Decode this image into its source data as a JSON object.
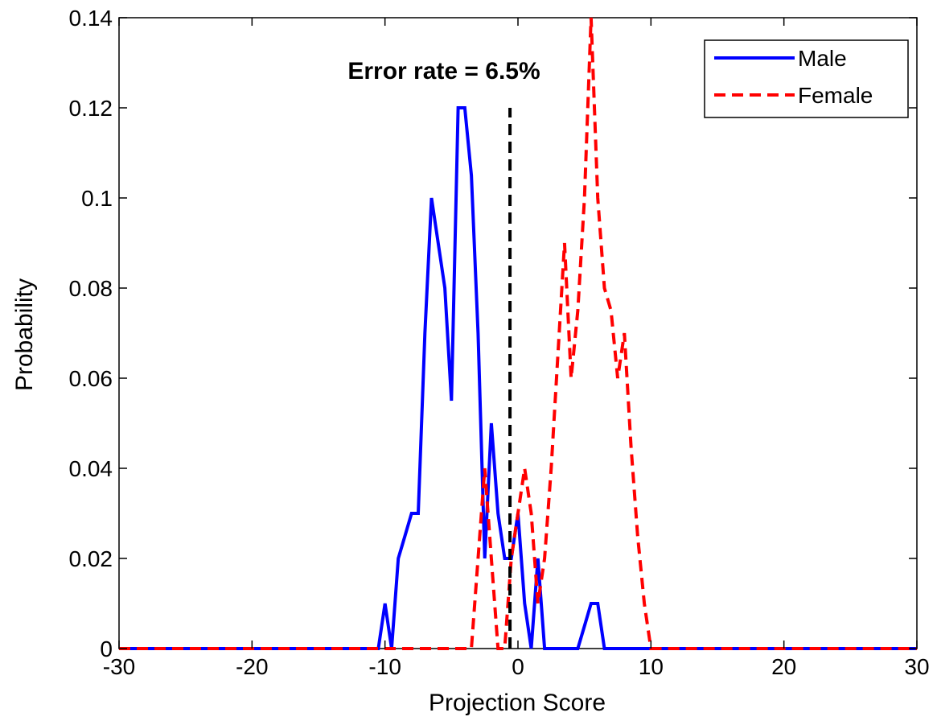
{
  "chart_data": {
    "type": "line",
    "title": "",
    "xlabel": "Projection Score",
    "ylabel": "Probability",
    "xlim": [
      -30,
      30
    ],
    "ylim": [
      0,
      0.14
    ],
    "xticks": [
      -30,
      -20,
      -10,
      0,
      10,
      20,
      30
    ],
    "xtick_labels": [
      "-30",
      "-20",
      "-10",
      "0",
      "10",
      "20",
      "30"
    ],
    "yticks": [
      0,
      0.02,
      0.04,
      0.06,
      0.08,
      0.1,
      0.12,
      0.14
    ],
    "ytick_labels": [
      "0",
      "0.02",
      "0.04",
      "0.06",
      "0.08",
      "0.1",
      "0.12",
      "0.14"
    ],
    "grid": false,
    "legend_position": "top-right",
    "annotation": {
      "text": "Error rate = 6.5%",
      "x": -0.6,
      "y": 0.1265
    },
    "threshold": {
      "x": -0.6,
      "y": [
        0,
        0.12
      ],
      "color": "#000000",
      "style": "dashed"
    },
    "series": [
      {
        "name": "Male",
        "color": "#0000ff",
        "style": "solid",
        "x": [
          -30,
          -10.5,
          -10,
          -9.5,
          -9,
          -8.5,
          -8,
          -7.5,
          -7,
          -6.5,
          -6,
          -5.5,
          -5,
          -4.5,
          -4,
          -3.5,
          -3,
          -2.5,
          -2,
          -1.5,
          -1,
          -0.5,
          0,
          0.5,
          1,
          1.5,
          2,
          2.5,
          3,
          4.5,
          5,
          5.5,
          6,
          6.5,
          7,
          30
        ],
        "y": [
          0,
          0,
          0.01,
          0,
          0.02,
          0.025,
          0.03,
          0.03,
          0.07,
          0.1,
          0.09,
          0.08,
          0.055,
          0.12,
          0.12,
          0.105,
          0.07,
          0.02,
          0.05,
          0.03,
          0.02,
          0.02,
          0.03,
          0.01,
          0,
          0.02,
          0,
          0,
          0,
          0,
          0.005,
          0.01,
          0.01,
          0,
          0,
          0
        ]
      },
      {
        "name": "Female",
        "color": "#ff0000",
        "style": "dashed",
        "x": [
          -30,
          -3.5,
          -3,
          -2.5,
          -2,
          -1.5,
          -1,
          -0.5,
          0,
          0.5,
          1,
          1.5,
          2,
          2.5,
          3,
          3.5,
          4,
          4.5,
          5,
          5.5,
          6,
          6.5,
          7,
          7.5,
          8,
          8.5,
          9,
          9.5,
          10,
          30
        ],
        "y": [
          0,
          0,
          0.02,
          0.04,
          0.02,
          0,
          0,
          0.02,
          0.03,
          0.04,
          0.03,
          0.01,
          0.02,
          0.04,
          0.065,
          0.09,
          0.06,
          0.075,
          0.1,
          0.14,
          0.1,
          0.08,
          0.075,
          0.06,
          0.07,
          0.045,
          0.025,
          0.01,
          0,
          0
        ]
      }
    ]
  }
}
